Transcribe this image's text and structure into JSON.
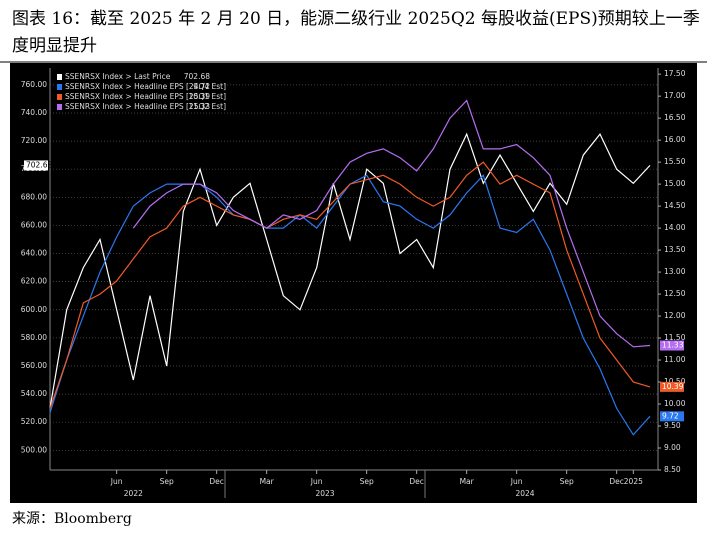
{
  "chart_data": {
    "type": "line",
    "title": "图表 16：截至 2025 年 2 月 20 日，能源二级行业 2025Q2 每股收益(EPS)预期较上一季度明显提升",
    "source": "来源：Bloomberg",
    "categories": [
      "2022-02",
      "2022-03",
      "2022-04",
      "2022-05",
      "2022-06",
      "2022-07",
      "2022-08",
      "2022-09",
      "2022-10",
      "2022-11",
      "2022-12",
      "2023-01",
      "2023-02",
      "2023-03",
      "2023-04",
      "2023-05",
      "2023-06",
      "2023-07",
      "2023-08",
      "2023-09",
      "2023-10",
      "2023-11",
      "2023-12",
      "2024-01",
      "2024-02",
      "2024-03",
      "2024-04",
      "2024-05",
      "2024-06",
      "2024-07",
      "2024-08",
      "2024-09",
      "2024-10",
      "2024-11",
      "2024-12",
      "2025-01",
      "2025-02"
    ],
    "series": [
      {
        "name": "SSENRSX Index > Last Price",
        "color": "#ffffff",
        "axis": "y",
        "values": [
          530,
          600,
          630,
          650,
          600,
          550,
          610,
          560,
          670,
          700,
          660,
          680,
          690,
          650,
          610,
          600,
          630,
          690,
          650,
          700,
          690,
          640,
          650,
          630,
          700,
          725,
          690,
          710,
          690,
          670,
          690,
          675,
          710,
          725,
          700,
          690,
          702.68
        ]
      },
      {
        "name": "SSENRSX Index > Headline EPS [24Q4 Est]",
        "color": "#2a78f0",
        "axis": "y2",
        "values": [
          9.8,
          11.0,
          12.0,
          13.0,
          13.8,
          14.5,
          14.8,
          15.0,
          15.0,
          15.0,
          14.7,
          14.3,
          14.2,
          14.0,
          14.0,
          14.3,
          14.0,
          14.5,
          15.0,
          15.2,
          14.6,
          14.5,
          14.2,
          14.0,
          14.3,
          14.8,
          15.2,
          14.0,
          13.9,
          14.2,
          13.5,
          12.5,
          11.5,
          10.8,
          9.9,
          9.3,
          9.72
        ]
      },
      {
        "name": "SSENRSX Index > Headline EPS [25Q1 Est]",
        "color": "#f05a28",
        "axis": "y2",
        "values": [
          9.9,
          11.0,
          12.3,
          12.5,
          12.8,
          13.3,
          13.8,
          14.0,
          14.5,
          14.7,
          14.5,
          14.3,
          14.2,
          14.0,
          14.2,
          14.3,
          14.2,
          14.6,
          15.0,
          15.1,
          15.2,
          15.0,
          14.7,
          14.5,
          14.7,
          15.2,
          15.5,
          15.0,
          15.2,
          15.0,
          14.8,
          13.5,
          12.5,
          11.5,
          11.0,
          10.5,
          10.39
        ]
      },
      {
        "name": "SSENRSX Index > Headline EPS [25Q2 Est]",
        "color": "#b56ef2",
        "axis": "y2",
        "values": [
          null,
          null,
          null,
          null,
          null,
          14.0,
          14.5,
          14.8,
          15.0,
          15.0,
          14.8,
          14.4,
          14.2,
          14.0,
          14.3,
          14.2,
          14.4,
          15.0,
          15.5,
          15.7,
          15.8,
          15.6,
          15.3,
          15.8,
          16.5,
          16.9,
          15.8,
          15.8,
          15.9,
          15.6,
          15.2,
          14.0,
          13.0,
          12.0,
          11.6,
          11.3,
          11.33
        ]
      }
    ],
    "ylim": [
      486,
      772
    ],
    "yticks": [
      {
        "value": 500,
        "label": "500.00"
      },
      {
        "value": 520,
        "label": "520.00"
      },
      {
        "value": 540,
        "label": "540.00"
      },
      {
        "value": 560,
        "label": "560.00"
      },
      {
        "value": 580,
        "label": "580.00"
      },
      {
        "value": 600,
        "label": "600.00"
      },
      {
        "value": 620,
        "label": "620.00"
      },
      {
        "value": 640,
        "label": "640.00"
      },
      {
        "value": 660,
        "label": "660.00"
      },
      {
        "value": 680,
        "label": "680.00"
      },
      {
        "value": 700,
        "label": "700.00"
      },
      {
        "value": 720,
        "label": "720.00"
      },
      {
        "value": 740,
        "label": "740.00"
      },
      {
        "value": 760,
        "label": "760.00"
      }
    ],
    "y2lim": [
      8.5,
      17.64
    ],
    "y2ticks": [
      {
        "value": 8.5,
        "label": "8.50"
      },
      {
        "value": 9,
        "label": "9.00"
      },
      {
        "value": 9.5,
        "label": "9.50"
      },
      {
        "value": 10,
        "label": "10.00"
      },
      {
        "value": 10.5,
        "label": "10.50"
      },
      {
        "value": 11,
        "label": "11.00"
      },
      {
        "value": 11.5,
        "label": "11.50"
      },
      {
        "value": 12,
        "label": "12.00"
      },
      {
        "value": 12.5,
        "label": "12.50"
      },
      {
        "value": 13,
        "label": "13.00"
      },
      {
        "value": 13.5,
        "label": "13.50"
      },
      {
        "value": 14,
        "label": "14.00"
      },
      {
        "value": 14.5,
        "label": "14.50"
      },
      {
        "value": 15,
        "label": "15.00"
      },
      {
        "value": 15.5,
        "label": "15.50"
      },
      {
        "value": 16,
        "label": "16.00"
      },
      {
        "value": 16.5,
        "label": "16.50"
      },
      {
        "value": 17,
        "label": "17.00"
      },
      {
        "value": 17.5,
        "label": "17.50"
      }
    ],
    "xticks": [
      {
        "value": "2022-06",
        "label": "Jun"
      },
      {
        "value": "2022-09",
        "label": "Sep"
      },
      {
        "value": "2022-12",
        "label": "Dec"
      },
      {
        "value": "2023-03",
        "label": "Mar"
      },
      {
        "value": "2023-06",
        "label": "Jun"
      },
      {
        "value": "2023-09",
        "label": "Sep"
      },
      {
        "value": "2023-12",
        "label": "Dec"
      },
      {
        "value": "2024-03",
        "label": "Mar"
      },
      {
        "value": "2024-06",
        "label": "Jun"
      },
      {
        "value": "2024-09",
        "label": "Sep"
      },
      {
        "value": "2024-12",
        "label": "Dec"
      },
      {
        "value": "2025-01",
        "label": "2025"
      }
    ],
    "year_labels": [
      "2022",
      "2023",
      "2024"
    ],
    "grid": true,
    "legend": "upper left"
  }
}
